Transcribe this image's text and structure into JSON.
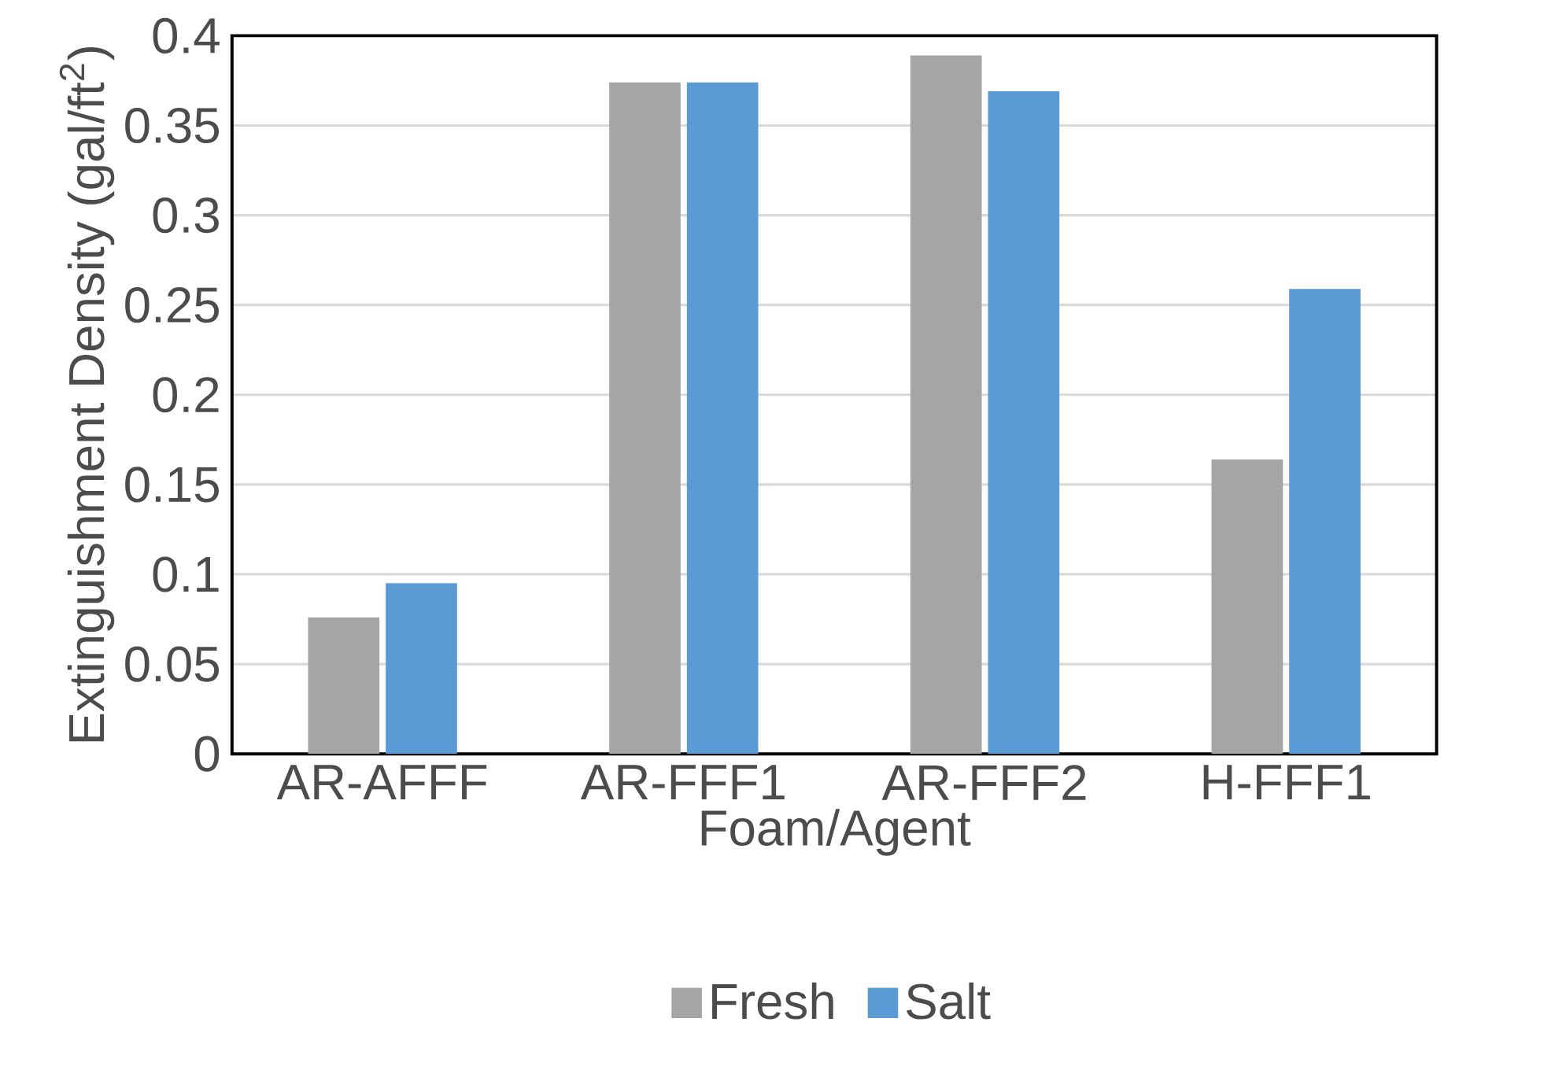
{
  "chart_data": {
    "type": "bar",
    "xlabel": "Foam/Agent",
    "ylabel": "Extinguishment Density (gal/ft$^{2}$)",
    "categories": [
      "AR-AFFF",
      "AR-FFF1",
      "AR-FFF2",
      "H-FFF1"
    ],
    "series": [
      {
        "name": "Fresh",
        "color": "#a5a5a5",
        "values": [
          0.076,
          0.374,
          0.389,
          0.164
        ]
      },
      {
        "name": "Salt",
        "color": "#5b9bd5",
        "values": [
          0.095,
          0.374,
          0.369,
          0.259
        ]
      }
    ],
    "ylim": [
      0,
      0.4
    ],
    "yticks": [
      0,
      0.05,
      0.1,
      0.15,
      0.2,
      0.25,
      0.3,
      0.35,
      0.4
    ],
    "grid": "y",
    "legend": "bottom"
  }
}
